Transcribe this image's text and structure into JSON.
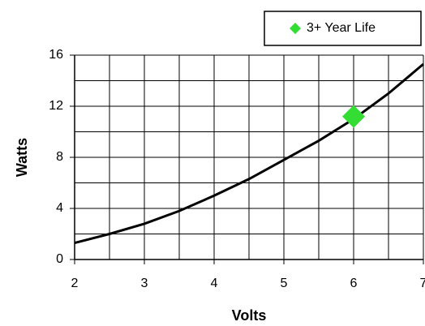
{
  "chart_data": {
    "type": "line",
    "x_label": "Volts",
    "y_label": "Watts",
    "xlim": [
      2,
      7
    ],
    "xticks": [
      2,
      3,
      4,
      5,
      6,
      7
    ],
    "ylim": [
      0,
      16
    ],
    "yticks": [
      0,
      4,
      8,
      12,
      16
    ],
    "xgrid": [
      2,
      2.5,
      3,
      3.5,
      4,
      4.5,
      5,
      5.5,
      6,
      6.5,
      7
    ],
    "ygrid": [
      0,
      2,
      4,
      6,
      8,
      10,
      12,
      14,
      16
    ],
    "grid": true,
    "legend": "top-right",
    "series": [
      {
        "type": "line",
        "color": "#000000",
        "x": [
          2,
          2.5,
          3,
          3.5,
          4,
          4.5,
          5,
          5.5,
          6,
          6.5,
          7
        ],
        "values": [
          1.3,
          2.0,
          2.8,
          3.8,
          5.0,
          6.3,
          7.8,
          9.3,
          11.0,
          13.0,
          15.3
        ]
      },
      {
        "type": "scatter",
        "name": "3+ Year Life",
        "color": "#33dd33",
        "marker": "diamond",
        "x": [
          6
        ],
        "values": [
          11.2
        ]
      }
    ]
  }
}
